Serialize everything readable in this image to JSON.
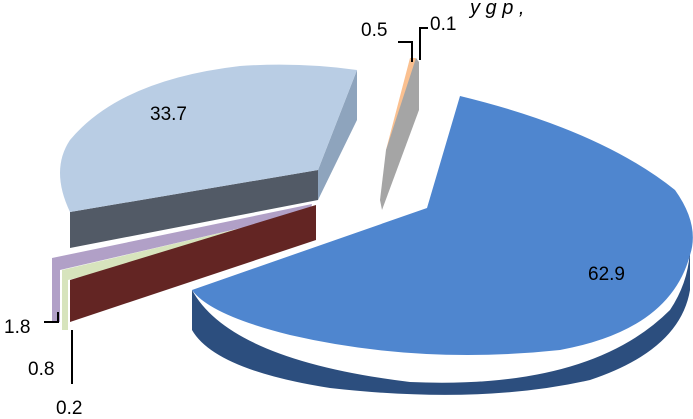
{
  "chart_data": {
    "type": "pie",
    "title": "",
    "slices": [
      {
        "label": "62.9",
        "value": 62.9,
        "color": "#4f86cf",
        "side": "#2c4e7e"
      },
      {
        "label": "33.7",
        "value": 33.7,
        "color": "#b9cde4",
        "side": "#8ea4bd"
      },
      {
        "label": "1.8",
        "value": 1.8,
        "color": "#b1a0c7",
        "side": "#7d6e94"
      },
      {
        "label": "0.8",
        "value": 0.8,
        "color": "#d7e4bd",
        "side": "#9fae80"
      },
      {
        "label": "0.2",
        "value": 0.2,
        "color": "#632523",
        "side": "#3f1513"
      },
      {
        "label": "0.5",
        "value": 0.5,
        "color": "#fac090",
        "side": "#c08a5c"
      },
      {
        "label": "0.1",
        "value": 0.1,
        "color": "#a5a5a5",
        "side": "#7a7a7a"
      }
    ]
  }
}
